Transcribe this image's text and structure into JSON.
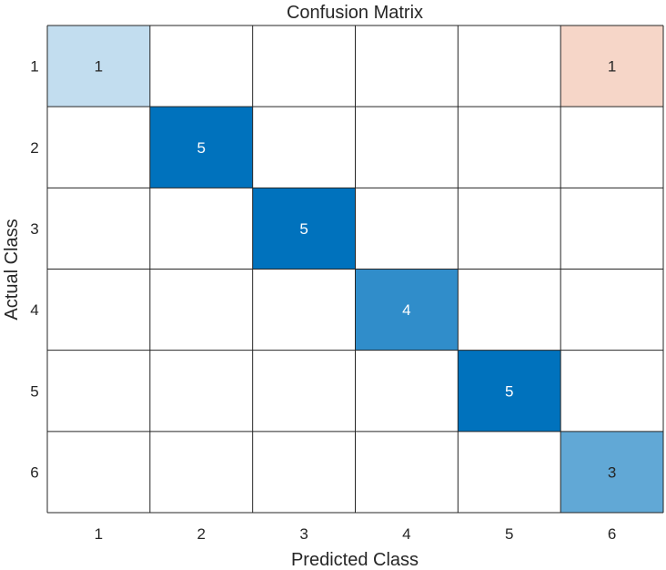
{
  "chart_data": {
    "type": "heatmap",
    "title": "Confusion Matrix",
    "xlabel": "Predicted Class",
    "ylabel": "Actual Class",
    "x_categories": [
      "1",
      "2",
      "3",
      "4",
      "5",
      "6"
    ],
    "y_categories": [
      "1",
      "2",
      "3",
      "4",
      "5",
      "6"
    ],
    "values": [
      [
        1,
        0,
        0,
        0,
        0,
        1
      ],
      [
        0,
        5,
        0,
        0,
        0,
        0
      ],
      [
        0,
        0,
        5,
        0,
        0,
        0
      ],
      [
        0,
        0,
        0,
        4,
        0,
        0
      ],
      [
        0,
        0,
        0,
        0,
        5,
        0
      ],
      [
        0,
        0,
        0,
        0,
        0,
        3
      ]
    ],
    "grid": true,
    "colors": {
      "correct_max": "#0072BD",
      "correct_min": "#FFFFFF",
      "incorrect_max": "#D95319",
      "incorrect_min": "#FFFFFF",
      "grid_line": "#262626"
    }
  }
}
